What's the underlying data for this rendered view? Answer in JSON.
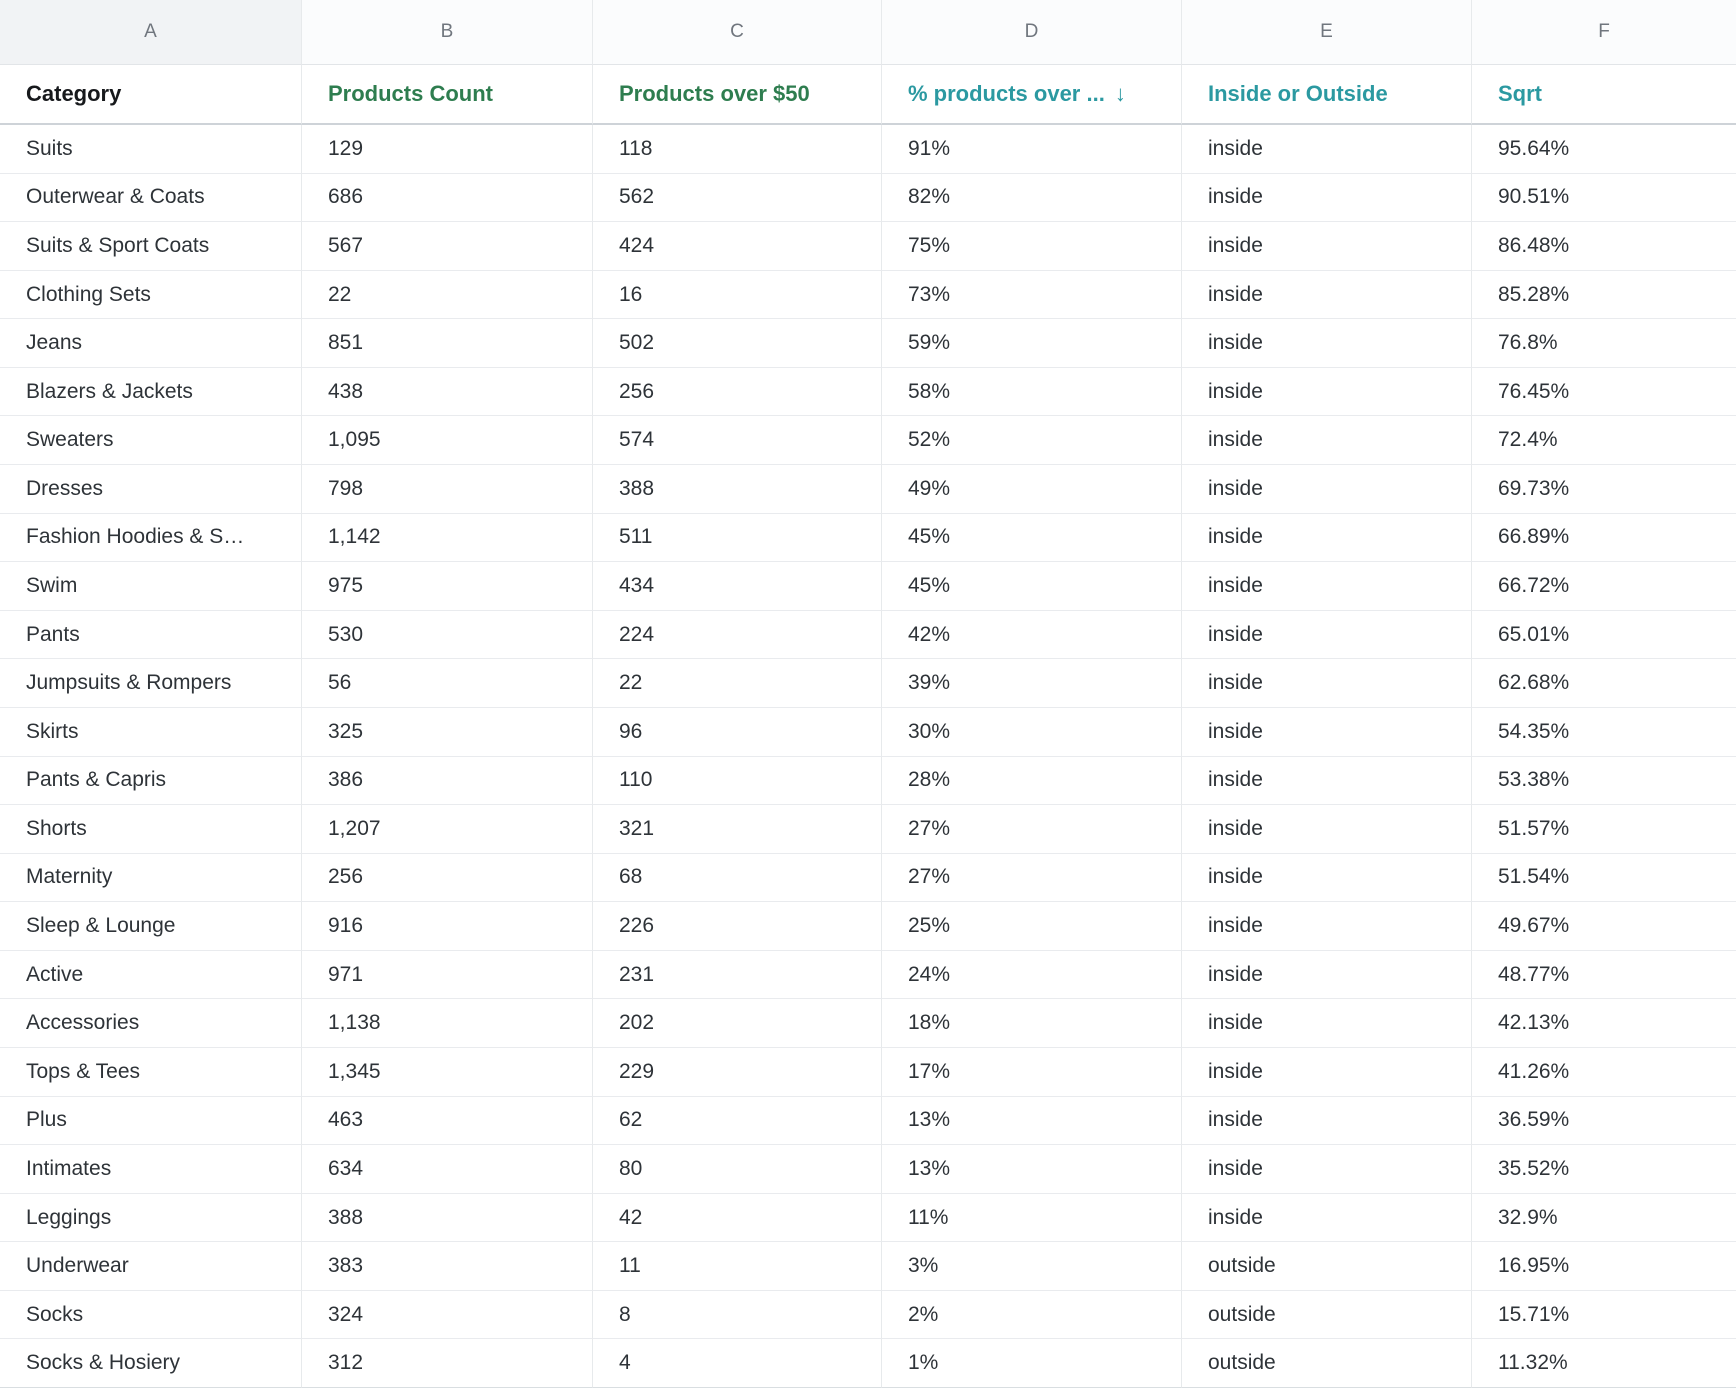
{
  "colors": {
    "header_green": "#2e7d4f",
    "header_teal": "#2b99a1",
    "header_dark": "#17191c",
    "letter_gray": "#70767e",
    "data_text": "#2e3338",
    "col_a_letter_bg": "#f1f3f5",
    "grid_line": "#e9ebee"
  },
  "columns": [
    {
      "letter": "A",
      "label": "Category",
      "style": "dark",
      "sorted": false
    },
    {
      "letter": "B",
      "label": "Products Count",
      "style": "green",
      "sorted": false
    },
    {
      "letter": "C",
      "label": "Products over $50",
      "style": "green",
      "sorted": false
    },
    {
      "letter": "D",
      "label": "% products over ...",
      "style": "teal",
      "sorted": true,
      "sort_icon": "↓"
    },
    {
      "letter": "E",
      "label": "Inside or Outside",
      "style": "teal",
      "sorted": false
    },
    {
      "letter": "F",
      "label": "Sqrt",
      "style": "teal",
      "sorted": false
    }
  ],
  "rows": [
    [
      "Suits",
      "129",
      "118",
      "91%",
      "inside",
      "95.64%"
    ],
    [
      "Outerwear & Coats",
      "686",
      "562",
      "82%",
      "inside",
      "90.51%"
    ],
    [
      "Suits & Sport Coats",
      "567",
      "424",
      "75%",
      "inside",
      "86.48%"
    ],
    [
      "Clothing Sets",
      "22",
      "16",
      "73%",
      "inside",
      "85.28%"
    ],
    [
      "Jeans",
      "851",
      "502",
      "59%",
      "inside",
      "76.8%"
    ],
    [
      "Blazers & Jackets",
      "438",
      "256",
      "58%",
      "inside",
      "76.45%"
    ],
    [
      "Sweaters",
      "1,095",
      "574",
      "52%",
      "inside",
      "72.4%"
    ],
    [
      "Dresses",
      "798",
      "388",
      "49%",
      "inside",
      "69.73%"
    ],
    [
      "Fashion Hoodies & S…",
      "1,142",
      "511",
      "45%",
      "inside",
      "66.89%"
    ],
    [
      "Swim",
      "975",
      "434",
      "45%",
      "inside",
      "66.72%"
    ],
    [
      "Pants",
      "530",
      "224",
      "42%",
      "inside",
      "65.01%"
    ],
    [
      "Jumpsuits & Rompers",
      "56",
      "22",
      "39%",
      "inside",
      "62.68%"
    ],
    [
      "Skirts",
      "325",
      "96",
      "30%",
      "inside",
      "54.35%"
    ],
    [
      "Pants & Capris",
      "386",
      "110",
      "28%",
      "inside",
      "53.38%"
    ],
    [
      "Shorts",
      "1,207",
      "321",
      "27%",
      "inside",
      "51.57%"
    ],
    [
      "Maternity",
      "256",
      "68",
      "27%",
      "inside",
      "51.54%"
    ],
    [
      "Sleep & Lounge",
      "916",
      "226",
      "25%",
      "inside",
      "49.67%"
    ],
    [
      "Active",
      "971",
      "231",
      "24%",
      "inside",
      "48.77%"
    ],
    [
      "Accessories",
      "1,138",
      "202",
      "18%",
      "inside",
      "42.13%"
    ],
    [
      "Tops & Tees",
      "1,345",
      "229",
      "17%",
      "inside",
      "41.26%"
    ],
    [
      "Plus",
      "463",
      "62",
      "13%",
      "inside",
      "36.59%"
    ],
    [
      "Intimates",
      "634",
      "80",
      "13%",
      "inside",
      "35.52%"
    ],
    [
      "Leggings",
      "388",
      "42",
      "11%",
      "inside",
      "32.9%"
    ],
    [
      "Underwear",
      "383",
      "11",
      "3%",
      "outside",
      "16.95%"
    ],
    [
      "Socks",
      "324",
      "8",
      "2%",
      "outside",
      "15.71%"
    ],
    [
      "Socks & Hosiery",
      "312",
      "4",
      "1%",
      "outside",
      "11.32%"
    ]
  ],
  "field_keys": [
    "category",
    "products_count",
    "products_over_50",
    "pct_products_over",
    "inside_or_outside",
    "sqrt"
  ]
}
